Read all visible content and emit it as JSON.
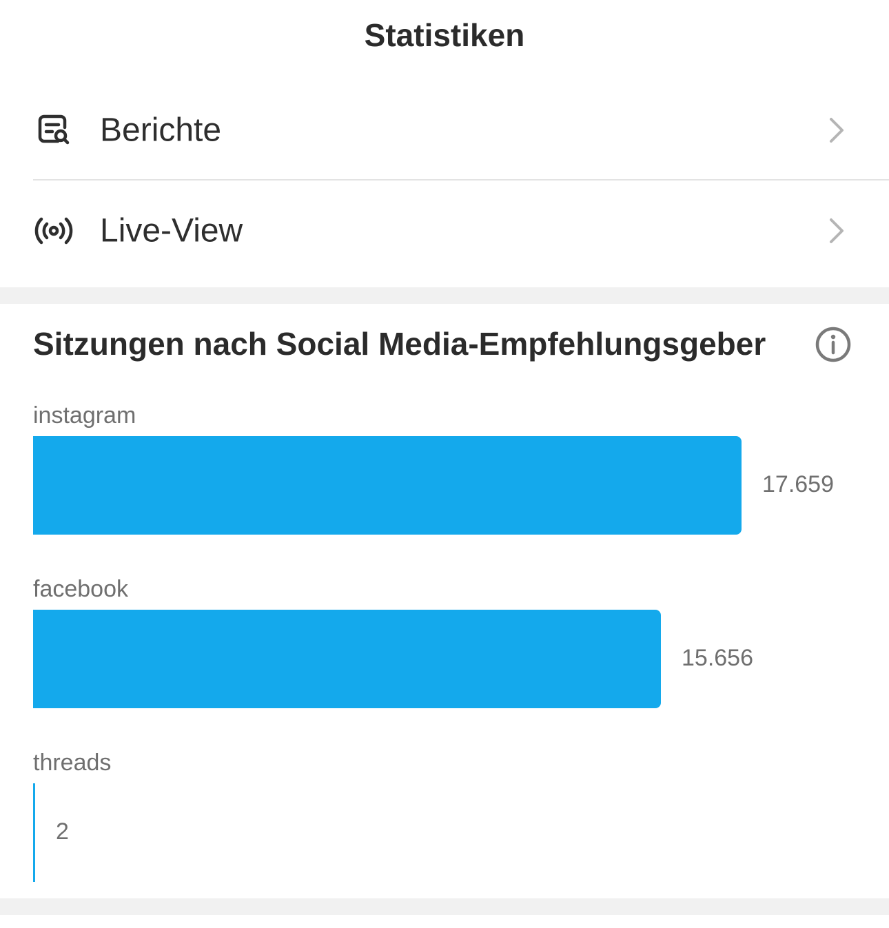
{
  "header": {
    "title": "Statistiken"
  },
  "nav": [
    {
      "label": "Berichte",
      "icon": "report-search-icon"
    },
    {
      "label": "Live-View",
      "icon": "live-broadcast-icon"
    }
  ],
  "card": {
    "title": "Sitzungen nach Social Media-Empfehlungsgeber",
    "info_icon": "info-icon"
  },
  "chart_data": {
    "type": "bar",
    "orientation": "horizontal",
    "categories": [
      "instagram",
      "facebook",
      "threads"
    ],
    "values": [
      17659,
      15656,
      2
    ],
    "value_labels": [
      "17.659",
      "15.656",
      "2"
    ],
    "color": "#14a9ec"
  }
}
